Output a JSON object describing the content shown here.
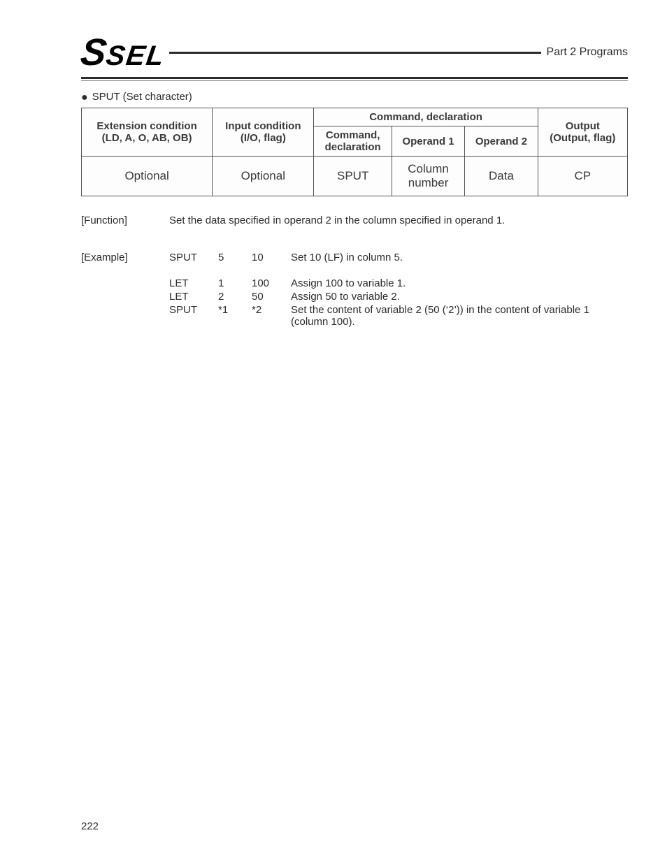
{
  "header": {
    "logo_s": "S",
    "logo_sel": "SEL",
    "part_label": "Part 2 Programs"
  },
  "section": {
    "bullet": "●",
    "title": "SPUT (Set character)"
  },
  "table": {
    "headers": {
      "ext_cond_line1": "Extension condition",
      "ext_cond_line2": "(LD, A, O, AB, OB)",
      "in_cond_line1": "Input condition",
      "in_cond_line2": "(I/O, flag)",
      "cmd_decl": "Command, declaration",
      "cmd_line1": "Command,",
      "cmd_line2": "declaration",
      "op1": "Operand 1",
      "op2": "Operand 2",
      "out_line1": "Output",
      "out_line2": "(Output, flag)"
    },
    "body": {
      "ext": "Optional",
      "in": "Optional",
      "cmd": "SPUT",
      "op1_line1": "Column",
      "op1_line2": "number",
      "op2": "Data",
      "out": "CP"
    }
  },
  "function": {
    "label": "[Function]",
    "text": "Set the data specified in operand 2 in the column specified in operand 1."
  },
  "example": {
    "label": "[Example]",
    "rows": [
      {
        "c": "SPUT",
        "a": "5",
        "b": "10",
        "d": "Set 10 (LF) in column 5."
      },
      {
        "gap": true
      },
      {
        "c": "LET",
        "a": "1",
        "b": "100",
        "d": "Assign 100 to variable 1."
      },
      {
        "c": "LET",
        "a": "2",
        "b": "50",
        "d": "Assign 50 to variable 2."
      },
      {
        "c": "SPUT",
        "a": "*1",
        "b": "*2",
        "d": "Set the content of variable 2 (50 (‘2’)) in the content of variable 1 (column 100)."
      }
    ]
  },
  "page_number": "222"
}
